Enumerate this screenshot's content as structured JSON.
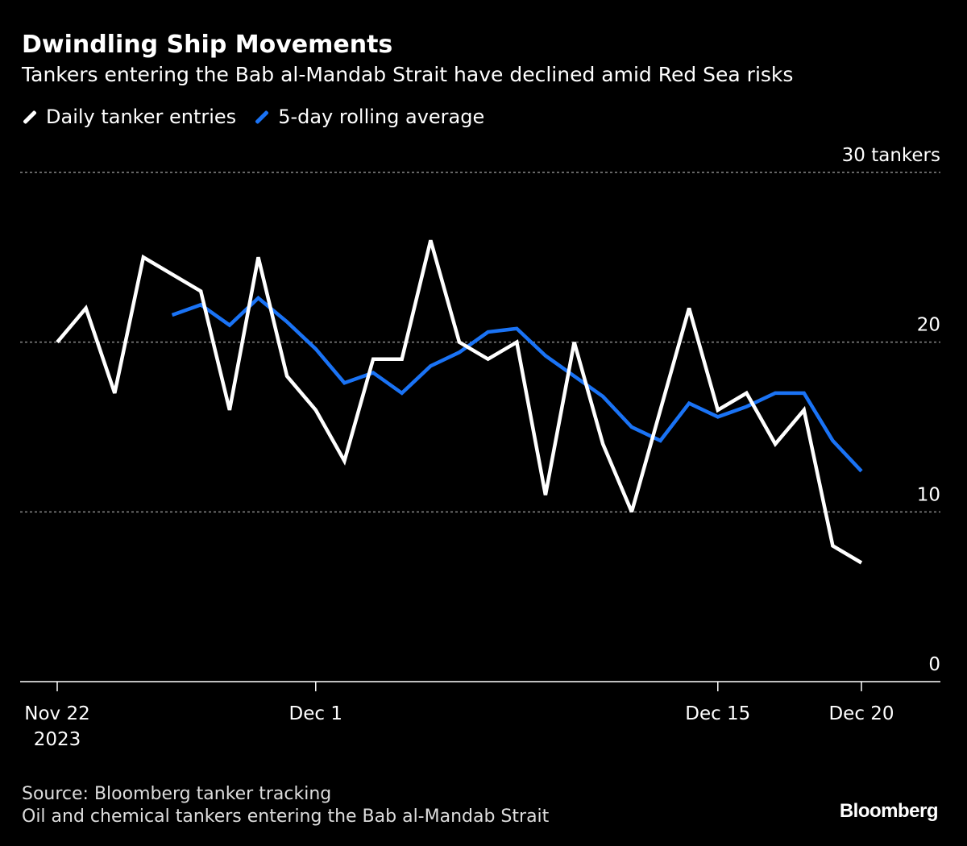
{
  "chart_data": {
    "type": "line",
    "title": "Dwindling Ship Movements",
    "subtitle": "Tankers entering the Bab al-Mandab Strait have declined amid Red Sea risks",
    "x": [
      "2023-11-22",
      "2023-11-23",
      "2023-11-24",
      "2023-11-25",
      "2023-11-26",
      "2023-11-27",
      "2023-11-28",
      "2023-11-29",
      "2023-11-30",
      "2023-12-01",
      "2023-12-02",
      "2023-12-03",
      "2023-12-04",
      "2023-12-05",
      "2023-12-06",
      "2023-12-07",
      "2023-12-08",
      "2023-12-09",
      "2023-12-10",
      "2023-12-11",
      "2023-12-12",
      "2023-12-13",
      "2023-12-14",
      "2023-12-15",
      "2023-12-16",
      "2023-12-17",
      "2023-12-18",
      "2023-12-19",
      "2023-12-20"
    ],
    "series": [
      {
        "name": "Daily tanker entries",
        "color": "#ffffff",
        "values": [
          20,
          22,
          17,
          25,
          24,
          23,
          16,
          25,
          18,
          16,
          13,
          19,
          19,
          26,
          20,
          19,
          20,
          11,
          20,
          14,
          10,
          16,
          22,
          16,
          17,
          14,
          16,
          8,
          7
        ]
      },
      {
        "name": "5-day rolling average",
        "color": "#1a73f5",
        "values": [
          null,
          null,
          null,
          null,
          21.6,
          22.2,
          21,
          22.6,
          21.2,
          19.6,
          17.6,
          18.2,
          17,
          18.6,
          19.4,
          20.6,
          20.8,
          19.2,
          18,
          16.8,
          15,
          14.2,
          16.4,
          15.6,
          16.2,
          17,
          17,
          14.2,
          12.4
        ]
      }
    ],
    "ylim": [
      0,
      30
    ],
    "yticks": [
      {
        "value": 0,
        "label": "0"
      },
      {
        "value": 10,
        "label": "10"
      },
      {
        "value": 20,
        "label": "20"
      },
      {
        "value": 30,
        "label": "30 tankers"
      }
    ],
    "xticks": [
      {
        "index": 0,
        "label": "Nov 22",
        "sublabel": "2023"
      },
      {
        "index": 9,
        "label": "Dec 1",
        "sublabel": ""
      },
      {
        "index": 23,
        "label": "Dec 15",
        "sublabel": ""
      },
      {
        "index": 28,
        "label": "Dec 20",
        "sublabel": ""
      }
    ],
    "grid": true,
    "legend_position": "top-left"
  },
  "footer": {
    "source": "Source: Bloomberg tanker tracking",
    "note": "Oil and chemical tankers entering the Bab al-Mandab Strait",
    "logo": "Bloomberg"
  }
}
